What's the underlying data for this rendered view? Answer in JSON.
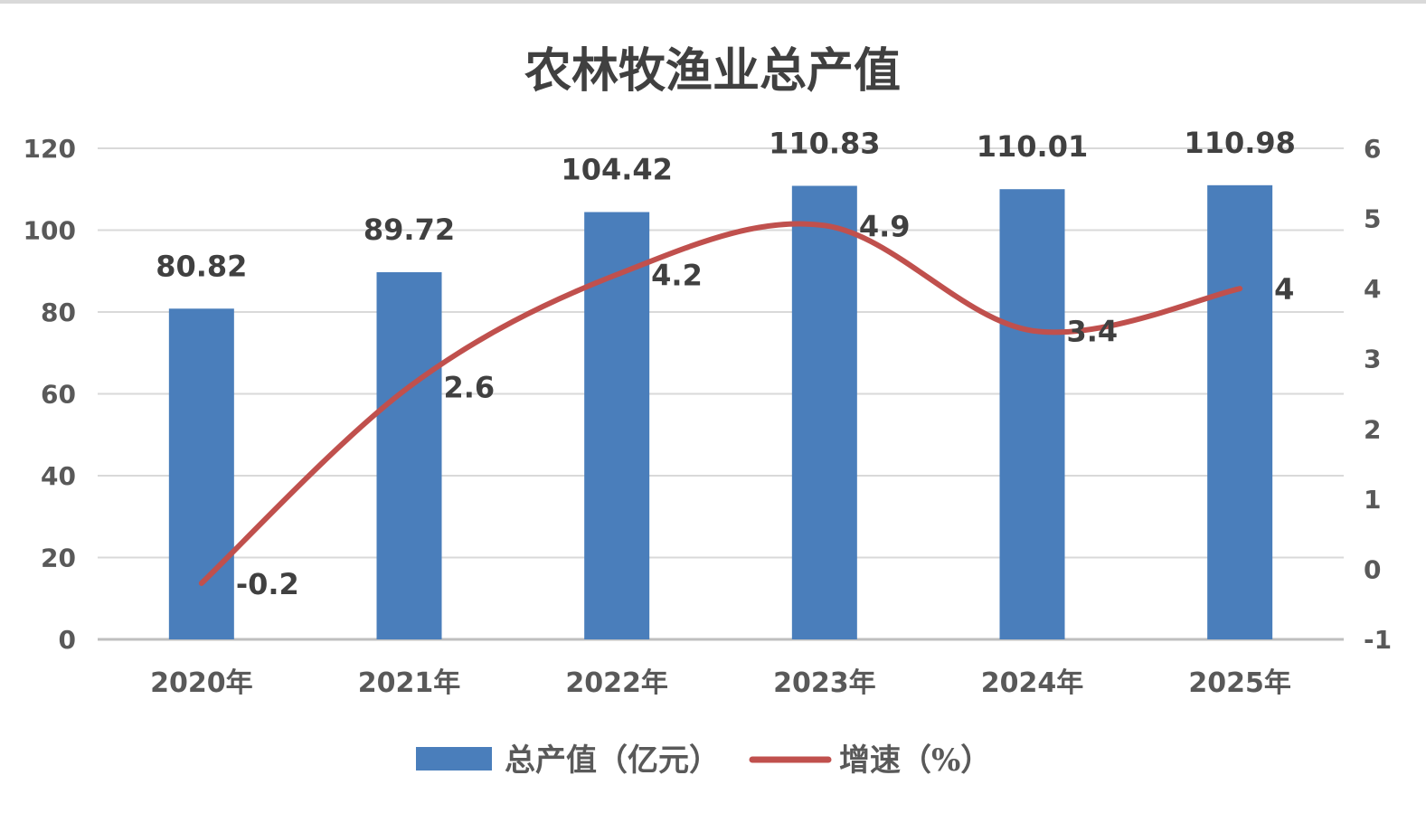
{
  "chart_data": {
    "type": "bar",
    "title": "农林牧渔业总产值",
    "categories": [
      "2020年",
      "2021年",
      "2022年",
      "2023年",
      "2024年",
      "2025年"
    ],
    "series": [
      {
        "name": "总产值（亿元）",
        "type": "bar",
        "axis": "left",
        "color": "#4a7ebb",
        "values": [
          80.82,
          89.72,
          104.42,
          110.83,
          110.01,
          110.98
        ]
      },
      {
        "name": "增速（%）",
        "type": "line",
        "axis": "right",
        "smooth": true,
        "color": "#c0504d",
        "values": [
          -0.2,
          2.6,
          4.2,
          4.9,
          3.4,
          4
        ]
      }
    ],
    "y_left": {
      "min": 0,
      "max": 120,
      "ticks": [
        "0",
        "20",
        "40",
        "60",
        "80",
        "100",
        "120"
      ]
    },
    "y_right": {
      "min": -1,
      "max": 6,
      "ticks": [
        "-1",
        "0",
        "1",
        "2",
        "3",
        "4",
        "5",
        "6"
      ]
    },
    "grid": true,
    "legend_position": "bottom"
  }
}
